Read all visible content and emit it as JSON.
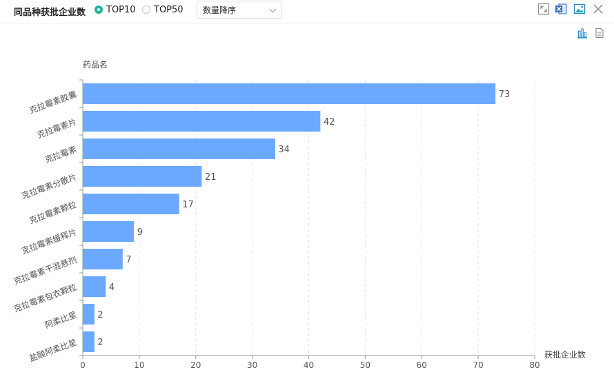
{
  "toolbar": {
    "title": "同品种获批企业数",
    "radio_options": [
      {
        "label": "TOP10",
        "selected": true
      },
      {
        "label": "TOP50",
        "selected": false
      }
    ],
    "sort_select": {
      "value": "数量降序"
    }
  },
  "icons": [
    "expand-icon",
    "excel-export-icon",
    "image-export-icon",
    "close-icon",
    "bar-chart-view-icon",
    "data-view-icon"
  ],
  "colors": {
    "bar": "#6aa9ff",
    "accent": "#1fb49c"
  },
  "chart_data": {
    "type": "bar",
    "orientation": "horizontal",
    "categories": [
      "克拉霉素胶囊",
      "克拉霉素片",
      "克拉霉素",
      "克拉霉素分散片",
      "克拉霉素颗粒",
      "克拉霉素缓释片",
      "克拉霉素干混悬剂",
      "克拉霉素包衣颗粒",
      "阿柔比星",
      "盐酸阿柔比星"
    ],
    "values": [
      73,
      42,
      34,
      21,
      17,
      9,
      7,
      4,
      2,
      2
    ],
    "ylabel": "药品名",
    "xlabel": "获批企业数",
    "xlim": [
      0,
      80
    ],
    "xticks": [
      0,
      10,
      20,
      30,
      40,
      50,
      60,
      70,
      80
    ],
    "grid": true
  }
}
